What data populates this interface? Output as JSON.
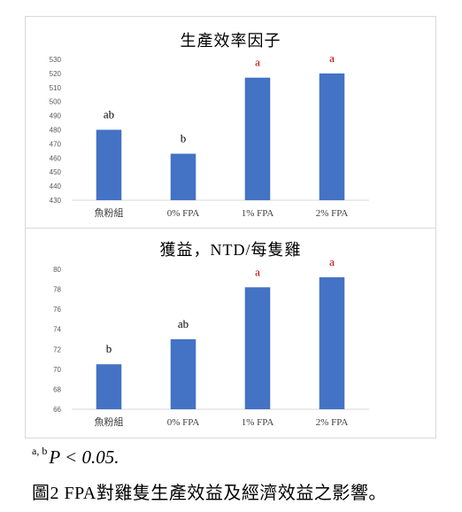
{
  "chart_data": [
    {
      "type": "bar",
      "title": "生產效率因子",
      "categories": [
        "魚粉組",
        "0% FPA",
        "1% FPA",
        "2% FPA"
      ],
      "values": [
        480,
        463,
        517,
        520
      ],
      "annotations": [
        "ab",
        "b",
        "a",
        "a"
      ],
      "annotation_colors": [
        "#000000",
        "#000000",
        "#c00000",
        "#c00000"
      ],
      "ylim": [
        430,
        530
      ],
      "yticks": [
        430,
        440,
        450,
        460,
        470,
        480,
        490,
        500,
        510,
        520,
        530
      ],
      "xlabel": "",
      "ylabel": "",
      "grid": false,
      "bar_color": "#4472c4"
    },
    {
      "type": "bar",
      "title": "獲益，NTD/每隻雞",
      "categories": [
        "魚粉組",
        "0% FPA",
        "1% FPA",
        "2% FPA"
      ],
      "values": [
        70.5,
        73,
        78.2,
        79.2
      ],
      "annotations": [
        "b",
        "ab",
        "a",
        "a"
      ],
      "annotation_colors": [
        "#000000",
        "#000000",
        "#c00000",
        "#c00000"
      ],
      "ylim": [
        66,
        80
      ],
      "yticks": [
        66,
        68,
        70,
        72,
        74,
        76,
        78,
        80
      ],
      "xlabel": "",
      "ylabel": "",
      "grid": false,
      "bar_color": "#4472c4"
    }
  ],
  "footnote": {
    "superscript": "a, b",
    "text": "P < 0.05."
  },
  "caption": "圖2 FPA對雞隻生產效益及經濟效益之影響。"
}
